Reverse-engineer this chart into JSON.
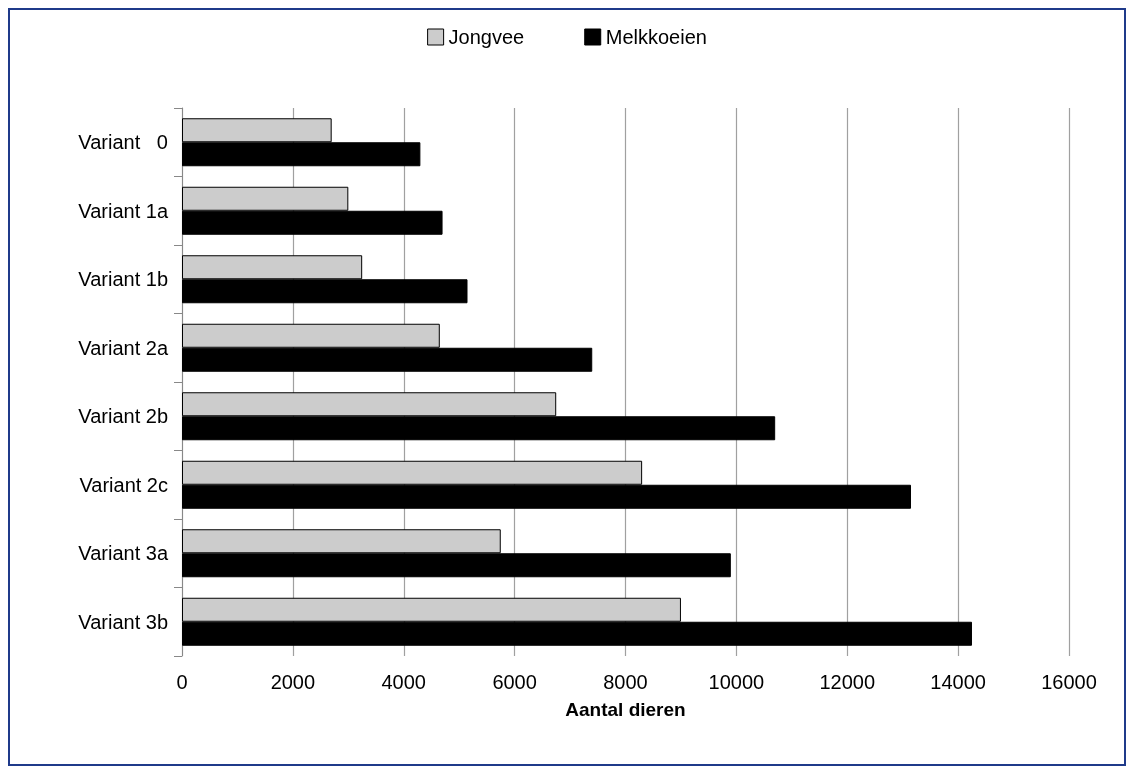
{
  "chart_data": {
    "type": "bar",
    "orientation": "horizontal",
    "xlabel": "Aantal dieren",
    "categories": [
      "Variant   0",
      "Variant 1a",
      "Variant 1b",
      "Variant 2a",
      "Variant 2b",
      "Variant 2c",
      "Variant 3a",
      "Variant 3b"
    ],
    "series": [
      {
        "name": "Jongvee",
        "color": "#cccccc",
        "values": [
          2700,
          3000,
          3250,
          4650,
          6750,
          8300,
          5750,
          9000
        ]
      },
      {
        "name": "Melkkoeien",
        "color": "#000000",
        "values": [
          4300,
          4700,
          5150,
          7400,
          10700,
          13150,
          9900,
          14250
        ]
      }
    ],
    "xlim": [
      0,
      16000
    ],
    "xticks": [
      0,
      2000,
      4000,
      6000,
      8000,
      10000,
      12000,
      14000,
      16000
    ],
    "grid": "x",
    "legend": "top"
  }
}
